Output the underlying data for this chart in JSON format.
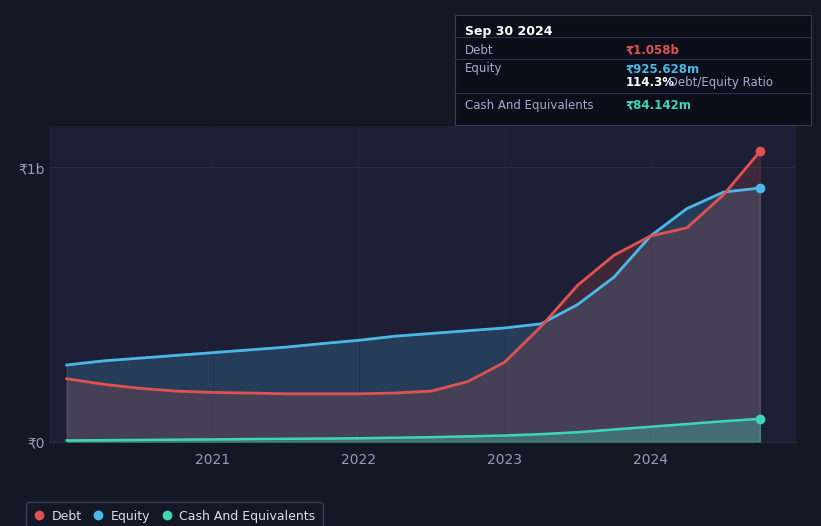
{
  "background_color": "#141825",
  "plot_bg_color": "#1c1f35",
  "grid_color": "#282b42",
  "title_text": "Sep 30 2024",
  "tooltip_debt_label": "Debt",
  "tooltip_equity_label": "Equity",
  "tooltip_cash_label": "Cash And Equivalents",
  "tooltip_debt": "₹1.058b",
  "tooltip_equity": "₹925.628m",
  "tooltip_ratio": "114.3%",
  "tooltip_ratio_suffix": " Debt/Equity Ratio",
  "tooltip_cash": "₹84.142m",
  "ylabel_1b": "₹1b",
  "ylabel_0": "₹0",
  "x_tick_labels": [
    "2021",
    "2022",
    "2023",
    "2024"
  ],
  "debt_color": "#e05252",
  "equity_color": "#4db8e8",
  "cash_color": "#3dd6b5",
  "legend_labels": [
    "Debt",
    "Equity",
    "Cash And Equivalents"
  ],
  "x": [
    2020.0,
    2020.25,
    2020.5,
    2020.75,
    2021.0,
    2021.25,
    2021.5,
    2021.75,
    2022.0,
    2022.25,
    2022.5,
    2022.75,
    2023.0,
    2023.25,
    2023.5,
    2023.75,
    2024.0,
    2024.25,
    2024.5,
    2024.75
  ],
  "debt": [
    230,
    210,
    195,
    185,
    180,
    178,
    175,
    175,
    175,
    178,
    185,
    220,
    290,
    420,
    570,
    680,
    750,
    780,
    900,
    1058
  ],
  "equity": [
    280,
    295,
    305,
    315,
    325,
    335,
    345,
    358,
    370,
    385,
    395,
    405,
    415,
    430,
    500,
    600,
    750,
    850,
    910,
    925
  ],
  "cash": [
    5,
    6,
    7,
    8,
    9,
    10,
    11,
    12,
    13,
    15,
    17,
    20,
    23,
    28,
    35,
    45,
    55,
    65,
    75,
    84
  ],
  "ylim": [
    0,
    1150
  ],
  "xlim": [
    2019.88,
    2025.0
  ]
}
